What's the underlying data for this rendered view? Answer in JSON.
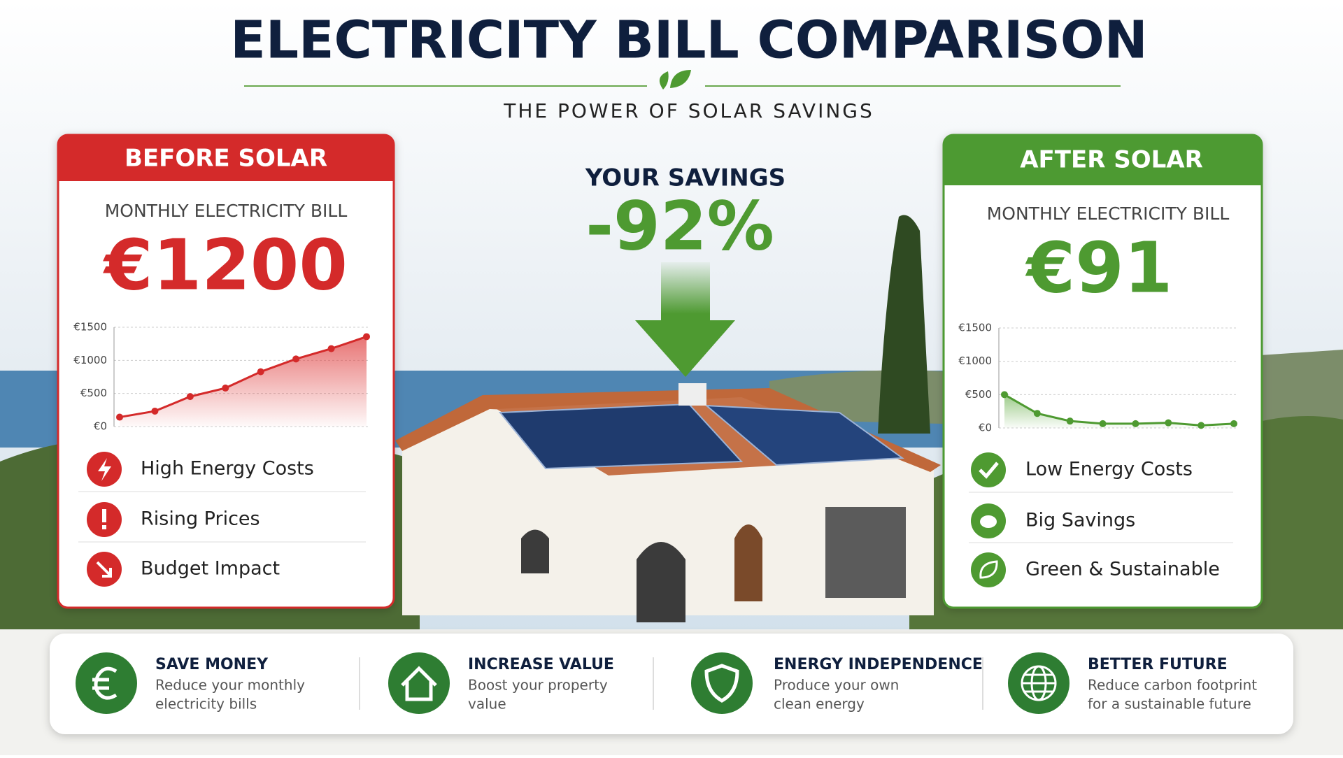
{
  "header": {
    "title": "ELECTRICITY BILL COMPARISON",
    "subtitle": "THE POWER OF SOLAR SAVINGS"
  },
  "savings": {
    "label": "YOUR SAVINGS",
    "value": "-92%"
  },
  "before": {
    "heading": "BEFORE SOLAR",
    "bill_label": "MONTHLY ELECTRICITY BILL",
    "bill": "€1200",
    "chart": {
      "type": "line",
      "color": "#d42a2a",
      "values": [
        142,
        233,
        453,
        582,
        828,
        1021,
        1177,
        1358
      ],
      "ylim": [
        0,
        1500
      ],
      "yticks": [
        {
          "value": 0,
          "label": "€0"
        },
        {
          "value": 500,
          "label": "€500"
        },
        {
          "value": 1000,
          "label": "€1000"
        },
        {
          "value": 1500,
          "label": "€1500"
        }
      ]
    },
    "items": [
      "High Energy Costs",
      "Rising Prices",
      "Budget Impact"
    ]
  },
  "after": {
    "heading": "AFTER SOLAR",
    "bill_label": "MONTHLY ELECTRICITY BILL",
    "bill": "€91",
    "chart": {
      "type": "line",
      "color": "#4e9a31",
      "values": [
        500,
        218,
        103,
        64,
        64,
        77,
        38,
        64
      ],
      "ylim": [
        0,
        1500
      ],
      "yticks": [
        {
          "value": 0,
          "label": "€0"
        },
        {
          "value": 500,
          "label": "€500"
        },
        {
          "value": 1000,
          "label": "€1000"
        },
        {
          "value": 1500,
          "label": "€1500"
        }
      ]
    },
    "items": [
      "Low Energy Costs",
      "Big Savings",
      "Green & Sustainable"
    ]
  },
  "features": [
    {
      "title": "SAVE MONEY",
      "description": [
        "Reduce your monthly",
        "electricity bills"
      ]
    },
    {
      "title": "INCREASE VALUE",
      "description": [
        "Boost your property",
        "value"
      ]
    },
    {
      "title": "ENERGY INDEPENDENCE",
      "description": [
        "Produce your own",
        "clean energy"
      ]
    },
    {
      "title": "BETTER FUTURE",
      "description": [
        "Reduce carbon footprint",
        "for a sustainable future"
      ]
    }
  ]
}
